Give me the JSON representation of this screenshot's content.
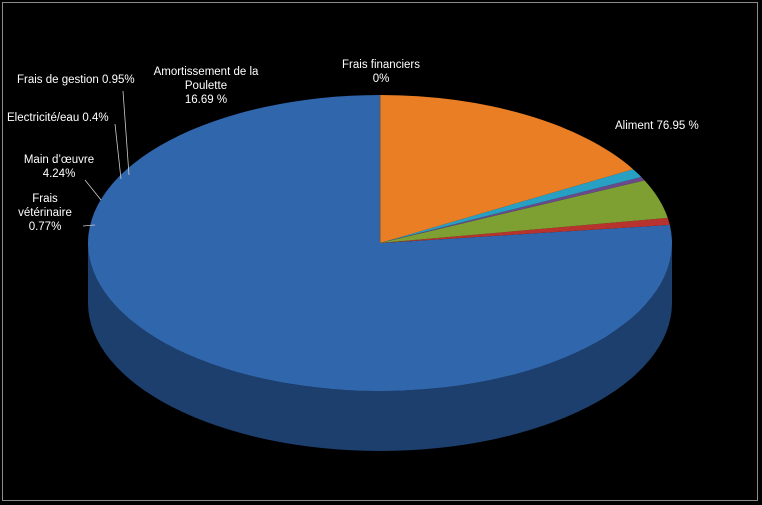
{
  "chart_data": {
    "type": "pie",
    "title": "",
    "style": "3d",
    "slices": [
      {
        "label": "Aliment",
        "value_text": "76.95 %",
        "value": 76.95,
        "color": "#3066ac",
        "side_color": "#1d3f6d",
        "explode": 0,
        "angle_fix": 0
      },
      {
        "label": "Frais vétérinaire",
        "value_text": "0.77%",
        "value": 0.77,
        "color": "#b8332e",
        "side_color": "#7a1f1c",
        "explode": 0,
        "angle_fix": 0
      },
      {
        "label": "Main d’œuvre",
        "value_text": "4.24%",
        "value": 4.24,
        "color": "#7e9f32",
        "side_color": "#546b20",
        "explode": 0,
        "angle_fix": 0
      },
      {
        "label": "Electricité/eau",
        "value_text": "0.4%",
        "value": 0.4,
        "color": "#6a4a8a",
        "side_color": "#47315c",
        "explode": 0,
        "angle_fix": 0
      },
      {
        "label": "Frais de gestion",
        "value_text": "0.95%",
        "value": 0.95,
        "color": "#28a0c4",
        "side_color": "#186a82",
        "explode": 0,
        "angle_fix": 0
      },
      {
        "label": "Amortissement de la Poulette",
        "value_text": "16.69 %",
        "value": 16.69,
        "color": "#ea7e24",
        "side_color": "#9c5216",
        "explode": 0,
        "angle_fix": 0
      },
      {
        "label": "Frais financiers",
        "value_text": "0%",
        "value": 0,
        "color": "#8a8a8a",
        "side_color": "#5a5a5a",
        "explode": 0,
        "angle_fix": 0
      }
    ],
    "legend": "none"
  },
  "labels": {
    "aliment": "Aliment  76.95 %",
    "frais_financiers": [
      "Frais financiers",
      "0%"
    ],
    "amortissement": [
      "Amortissement de la",
      "Poulette",
      "16.69 %"
    ],
    "frais_gestion": "Frais de gestion 0.95%",
    "electricite": "Electricité/eau  0.4%",
    "main_oeuvre": [
      "Main d’œuvre",
      "4.24%"
    ],
    "veterinaire": [
      "Frais",
      "vétérinaire",
      "0.77%"
    ]
  }
}
